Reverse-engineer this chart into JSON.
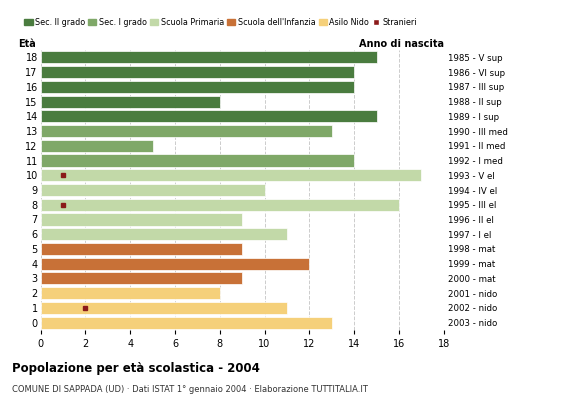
{
  "ages": [
    0,
    1,
    2,
    3,
    4,
    5,
    6,
    7,
    8,
    9,
    10,
    11,
    12,
    13,
    14,
    15,
    16,
    17,
    18
  ],
  "years": [
    "2003 - nido",
    "2002 - nido",
    "2001 - nido",
    "2000 - mat",
    "1999 - mat",
    "1998 - mat",
    "1997 - I el",
    "1996 - II el",
    "1995 - III el",
    "1994 - IV el",
    "1993 - V el",
    "1992 - I med",
    "1991 - II med",
    "1990 - III med",
    "1989 - I sup",
    "1988 - II sup",
    "1987 - III sup",
    "1986 - VI sup",
    "1985 - V sup"
  ],
  "values": [
    13,
    11,
    8,
    9,
    12,
    9,
    11,
    9,
    16,
    10,
    17,
    14,
    5,
    13,
    15,
    8,
    14,
    14,
    15
  ],
  "bar_colors": [
    "#f5d07a",
    "#f5d07a",
    "#f5d07a",
    "#c87137",
    "#c87137",
    "#c87137",
    "#c2d9a8",
    "#c2d9a8",
    "#c2d9a8",
    "#c2d9a8",
    "#c2d9a8",
    "#7fa868",
    "#7fa868",
    "#7fa868",
    "#4a7c3f",
    "#4a7c3f",
    "#4a7c3f",
    "#4a7c3f",
    "#4a7c3f"
  ],
  "stranieri_markers": [
    {
      "age": 1,
      "x": 2
    },
    {
      "age": 8,
      "x": 1
    },
    {
      "age": 10,
      "x": 1
    }
  ],
  "stranieri_color": "#8b1a1a",
  "title": "Popolazione per età scolastica - 2004",
  "subtitle": "COMUNE DI SAPPADA (UD) · Dati ISTAT 1° gennaio 2004 · Elaborazione TUTTITALIA.IT",
  "legend_labels": [
    "Sec. II grado",
    "Sec. I grado",
    "Scuola Primaria",
    "Scuola dell'Infanzia",
    "Asilo Nido",
    "Stranieri"
  ],
  "legend_colors": [
    "#4a7c3f",
    "#7fa868",
    "#c2d9a8",
    "#c87137",
    "#f5d07a",
    "#8b1a1a"
  ],
  "xlim": [
    0,
    18
  ],
  "xlabel_eta": "Età",
  "xlabel_anno": "Anno di nascita",
  "bg_color": "#ffffff",
  "grid_color": "#cccccc"
}
